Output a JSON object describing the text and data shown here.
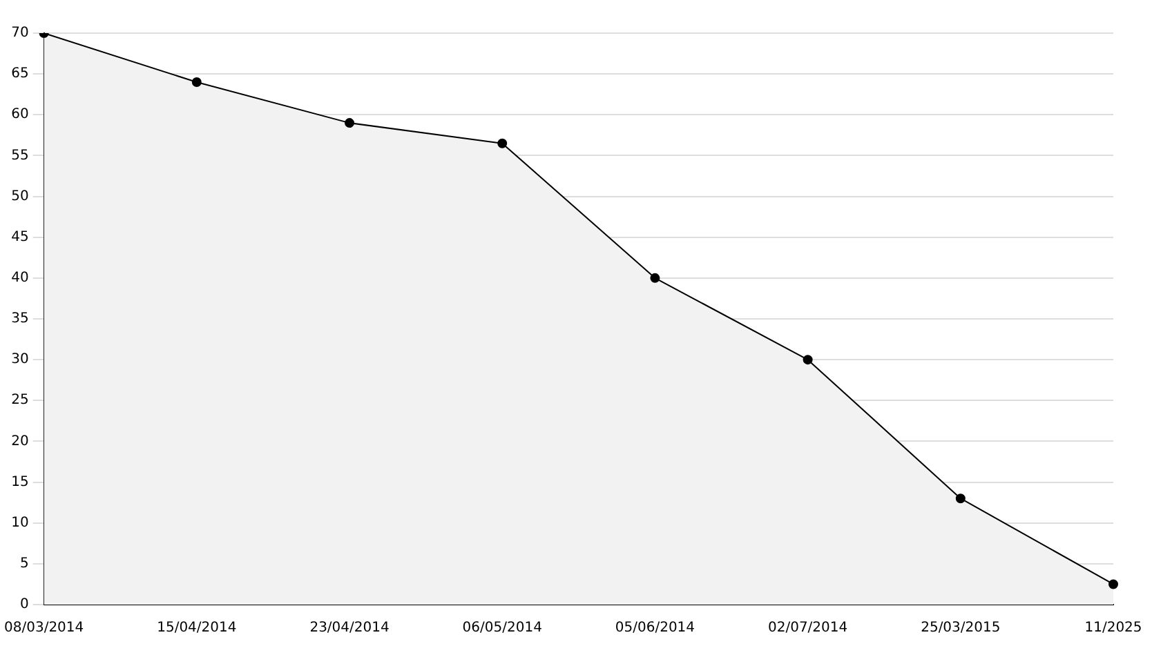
{
  "chart_data": {
    "type": "area",
    "categories": [
      "08/03/2014",
      "15/04/2014",
      "23/04/2014",
      "06/05/2014",
      "05/06/2014",
      "02/07/2014",
      "25/03/2015",
      "11/2025"
    ],
    "series": [
      {
        "color": "#000000",
        "values": [
          70,
          64,
          59,
          56.5,
          40,
          30,
          13,
          2.5
        ]
      }
    ],
    "ylim": [
      0,
      70
    ],
    "yticks": [
      0,
      5,
      10,
      15,
      20,
      25,
      30,
      35,
      40,
      45,
      50,
      55,
      60,
      65,
      70
    ],
    "grid": "y",
    "legend": false,
    "marker": "circle",
    "line_style": "solid"
  }
}
